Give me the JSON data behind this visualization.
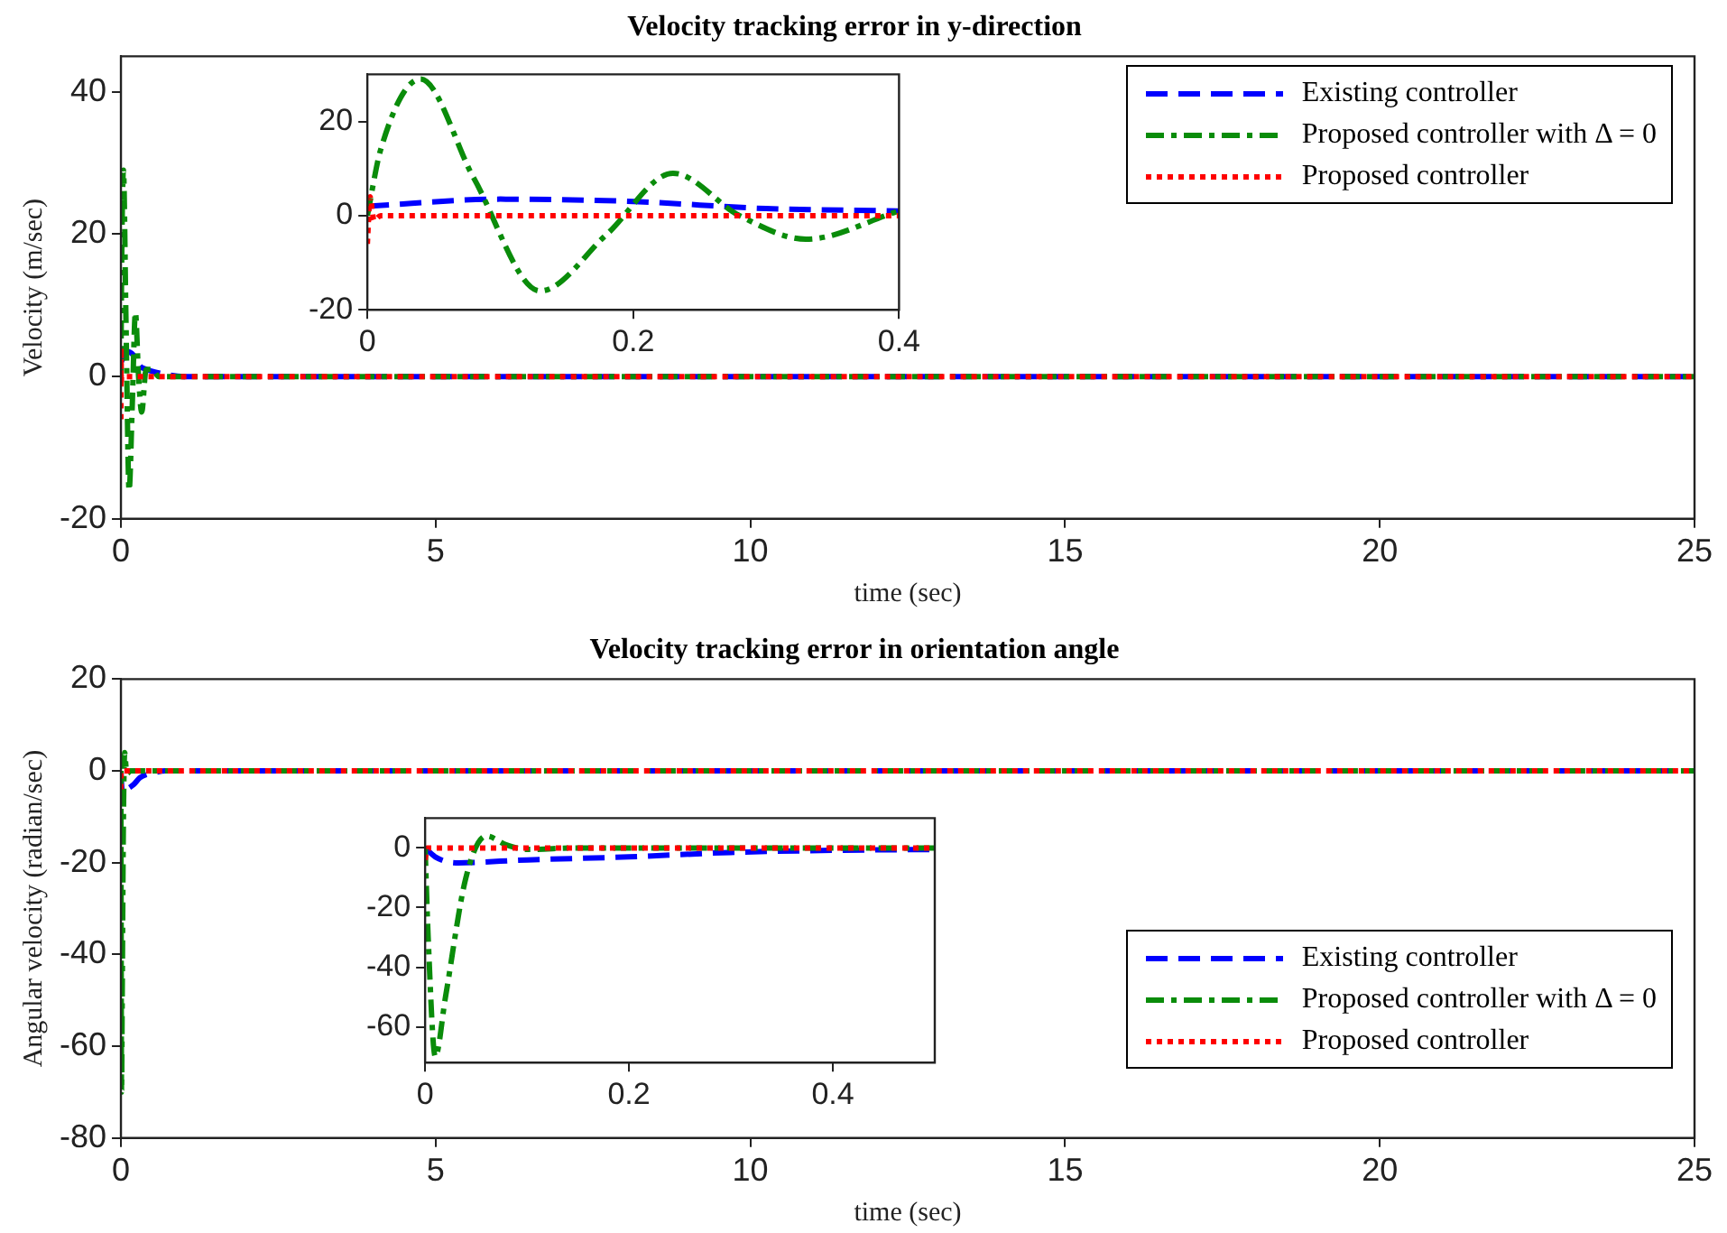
{
  "chart_data": [
    {
      "type": "line",
      "title": "Velocity tracking error in y-direction",
      "xlabel": "time (sec)",
      "ylabel": "Velocity (m/sec)",
      "xlim": [
        0,
        25
      ],
      "xticks": [
        0,
        5,
        10,
        15,
        20,
        25
      ],
      "ylim": [
        -20,
        45
      ],
      "yticks": [
        -20,
        0,
        20,
        40
      ],
      "grid": false,
      "legend": "top right",
      "series": [
        {
          "name": "Existing controller",
          "color": "#0000ff",
          "line_style": "dashed",
          "x": [
            0,
            0.1,
            0.2,
            0.3,
            0.4,
            0.6,
            1,
            25
          ],
          "values": [
            2,
            3.5,
            3,
            1.5,
            1,
            0.5,
            0,
            0
          ]
        },
        {
          "name": "Proposed controller with Δ = 0",
          "color": "#0a8c0a",
          "line_style": "dashdot",
          "x": [
            0,
            0.01,
            0.04,
            0.08,
            0.13,
            0.18,
            0.23,
            0.28,
            0.33,
            0.4,
            0.5,
            0.6,
            25
          ],
          "values": [
            0,
            14,
            29,
            8,
            -16,
            -4,
            9,
            0,
            -5,
            1,
            1,
            0,
            0
          ]
        },
        {
          "name": "Proposed controller",
          "color": "#ff0000",
          "line_style": "dotted",
          "x": [
            0,
            0.002,
            0.005,
            0.01,
            25
          ],
          "values": [
            -6,
            4,
            -1,
            0,
            0
          ]
        }
      ]
    },
    {
      "type": "line",
      "xlim": [
        0,
        0.4
      ],
      "xticks": [
        0,
        0.2,
        0.4
      ],
      "ylim": [
        -20,
        30
      ],
      "yticks": [
        -20,
        0,
        20
      ],
      "grid": false,
      "legend": false,
      "series": [
        {
          "color": "#0000ff",
          "line_style": "dashed",
          "x": [
            0,
            0.1,
            0.2,
            0.3,
            0.4
          ],
          "values": [
            2,
            3.5,
            3,
            1.5,
            1
          ]
        },
        {
          "color": "#0a8c0a",
          "line_style": "dashdot",
          "x": [
            0,
            0.01,
            0.04,
            0.08,
            0.13,
            0.18,
            0.23,
            0.28,
            0.33,
            0.4
          ],
          "values": [
            0,
            14,
            29,
            8,
            -16,
            -4,
            9,
            0,
            -5,
            1
          ]
        },
        {
          "color": "#ff0000",
          "line_style": "dotted",
          "x": [
            0,
            0.002,
            0.005,
            0.01,
            0.4
          ],
          "values": [
            -6,
            4,
            -1,
            0,
            0
          ]
        }
      ]
    },
    {
      "type": "line",
      "title": "Velocity tracking error in orientation angle",
      "xlabel": "time (sec)",
      "ylabel": "Angular velocity (radian/sec)",
      "xlim": [
        0,
        25
      ],
      "xticks": [
        0,
        5,
        10,
        15,
        20,
        25
      ],
      "ylim": [
        -80,
        20
      ],
      "yticks": [
        -80,
        -60,
        -40,
        -20,
        0,
        20
      ],
      "grid": false,
      "legend": "right",
      "series": [
        {
          "name": "Existing controller",
          "color": "#0000ff",
          "line_style": "dashed",
          "x": [
            0,
            0.01,
            0.03,
            0.1,
            0.2,
            0.3,
            0.4,
            0.5,
            0.7,
            25
          ],
          "values": [
            0,
            -3,
            -5,
            -4,
            -3,
            -1.5,
            -0.8,
            -0.5,
            0,
            0
          ]
        },
        {
          "name": "Proposed controller with Δ = 0",
          "color": "#0a8c0a",
          "line_style": "dashdot",
          "x": [
            0,
            0.003,
            0.01,
            0.02,
            0.04,
            0.06,
            0.08,
            0.1,
            0.15,
            25
          ],
          "values": [
            0,
            -30,
            -70,
            -50,
            -10,
            4,
            1,
            -0.5,
            0,
            0
          ]
        },
        {
          "name": "Proposed controller",
          "color": "#ff0000",
          "line_style": "dotted",
          "x": [
            0,
            0.002,
            25
          ],
          "values": [
            -4,
            0,
            0
          ]
        }
      ]
    },
    {
      "type": "line",
      "xlim": [
        0,
        0.5
      ],
      "xticks": [
        0,
        0.2,
        0.4
      ],
      "ylim": [
        -72,
        10
      ],
      "yticks": [
        -60,
        -40,
        -20,
        0
      ],
      "grid": false,
      "legend": false,
      "series": [
        {
          "color": "#0000ff",
          "line_style": "dashed",
          "x": [
            0,
            0.01,
            0.03,
            0.1,
            0.2,
            0.3,
            0.4,
            0.5
          ],
          "values": [
            0,
            -3,
            -5,
            -4,
            -3,
            -1.5,
            -0.8,
            -0.5
          ]
        },
        {
          "color": "#0a8c0a",
          "line_style": "dashdot",
          "x": [
            0,
            0.003,
            0.01,
            0.02,
            0.04,
            0.06,
            0.08,
            0.1,
            0.15,
            0.5
          ],
          "values": [
            0,
            -30,
            -70,
            -50,
            -10,
            4,
            1,
            -0.5,
            0,
            0
          ]
        },
        {
          "color": "#ff0000",
          "line_style": "dotted",
          "x": [
            0,
            0.002,
            0.5
          ],
          "values": [
            -4,
            0,
            0
          ]
        }
      ]
    }
  ]
}
